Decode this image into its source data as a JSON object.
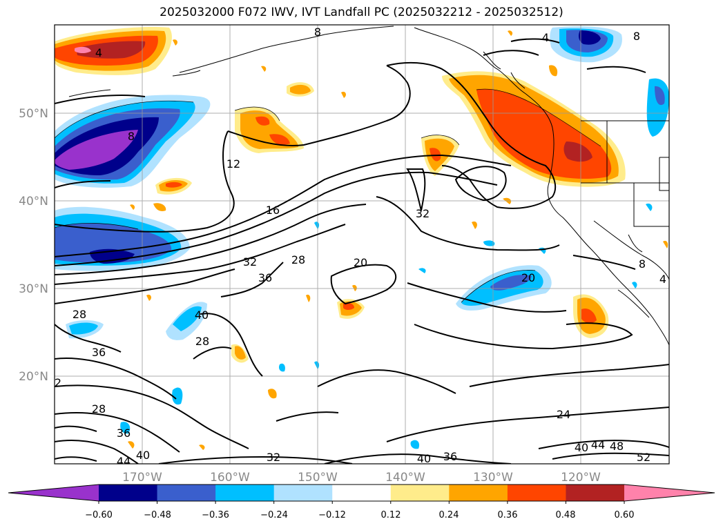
{
  "title": "2025032000 F072 IWV, IVT Landfall PC (2025032212 - 2025032512)",
  "lat_labels": [
    "50°N",
    "40°N",
    "30°N",
    "20°N"
  ],
  "lon_labels": [
    "170°W",
    "160°W",
    "150°W",
    "140°W",
    "130°W",
    "120°W"
  ],
  "contour_labels": [
    "4",
    "8",
    "8",
    "8",
    "12",
    "16",
    "32",
    "28",
    "36",
    "32",
    "20",
    "20",
    "28",
    "36",
    "40",
    "28",
    "2",
    "28",
    "36",
    "40",
    "44",
    "32",
    "40",
    "36",
    "24",
    "40",
    "44",
    "48",
    "52",
    "4",
    "8",
    "4"
  ],
  "colorbar": {
    "tick_labels": [
      "−0.60",
      "−0.48",
      "−0.36",
      "−0.24",
      "−0.12",
      "0.12",
      "0.24",
      "0.36",
      "0.48",
      "0.60"
    ],
    "colors": [
      "#9932cc",
      "#00008b",
      "#3a5fcd",
      "#00bfff",
      "#b0e2ff",
      "#ffffff",
      "#ffec8b",
      "#ffa500",
      "#ff4500",
      "#b22222",
      "#ff82ab"
    ]
  }
}
